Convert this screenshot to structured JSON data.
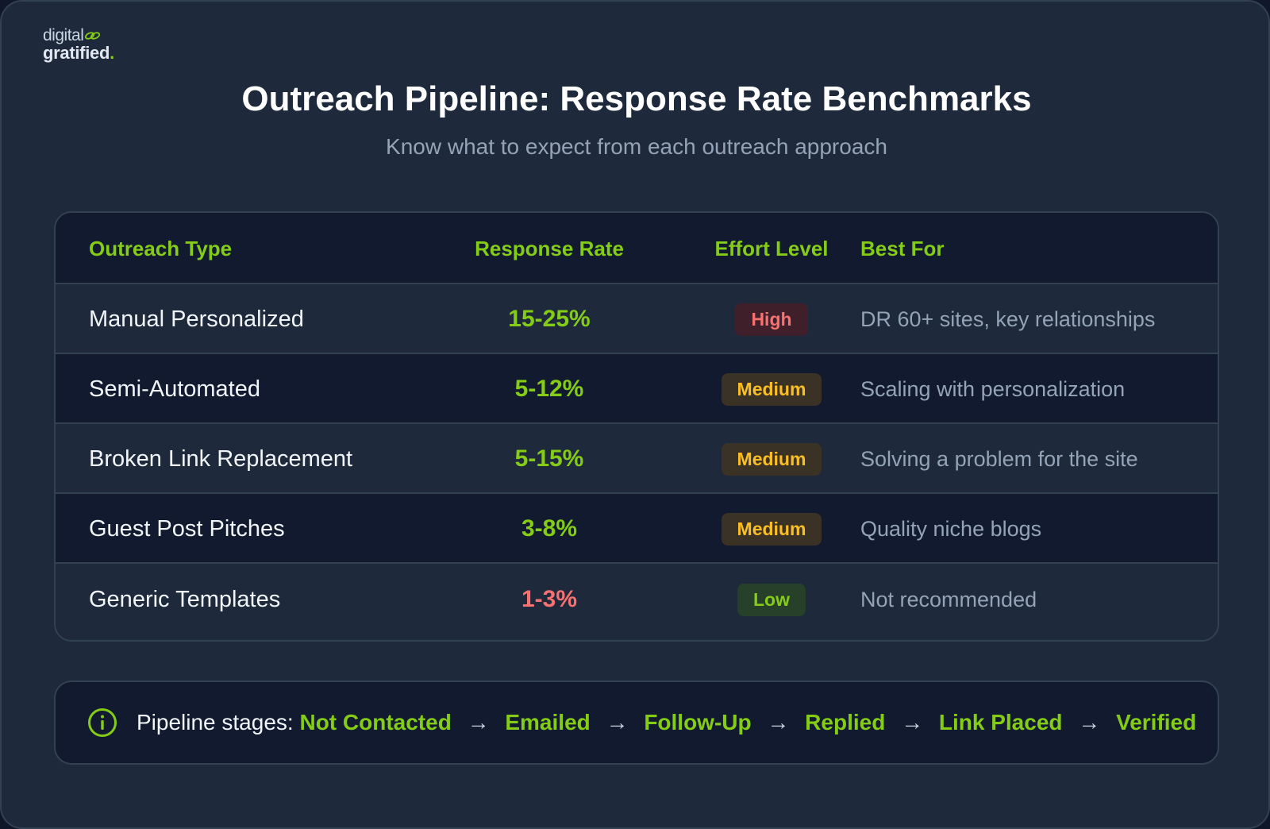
{
  "logo": {
    "line1": "digital",
    "line2": "gratified",
    "line2_dot": "."
  },
  "header": {
    "title": "Outreach Pipeline: Response Rate Benchmarks",
    "subtitle": "Know what to expect from each outreach approach"
  },
  "table": {
    "columns": [
      "Outreach Type",
      "Response Rate",
      "Effort Level",
      "Best For"
    ],
    "rows": [
      {
        "type": "Manual Personalized",
        "rate": "15-25%",
        "rate_status": "good",
        "effort": "High",
        "effort_level": "high",
        "best_for": "DR 60+ sites, key relationships"
      },
      {
        "type": "Semi-Automated",
        "rate": "5-12%",
        "rate_status": "good",
        "effort": "Medium",
        "effort_level": "medium",
        "best_for": "Scaling with personalization"
      },
      {
        "type": "Broken Link Replacement",
        "rate": "5-15%",
        "rate_status": "good",
        "effort": "Medium",
        "effort_level": "medium",
        "best_for": "Solving a problem for the site"
      },
      {
        "type": "Guest Post Pitches",
        "rate": "3-8%",
        "rate_status": "good",
        "effort": "Medium",
        "effort_level": "medium",
        "best_for": "Quality niche blogs"
      },
      {
        "type": "Generic Templates",
        "rate": "1-3%",
        "rate_status": "bad",
        "effort": "Low",
        "effort_level": "low",
        "best_for": "Not recommended"
      }
    ]
  },
  "footer": {
    "icon": "info-icon",
    "label": "Pipeline stages:",
    "stages": [
      "Not Contacted",
      "Emailed",
      "Follow-Up",
      "Replied",
      "Link Placed",
      "Verified"
    ],
    "arrow": "→"
  },
  "colors": {
    "accent": "#84cc16",
    "danger": "#f87171",
    "warning": "#fbbf24",
    "background": "#1e293b"
  }
}
